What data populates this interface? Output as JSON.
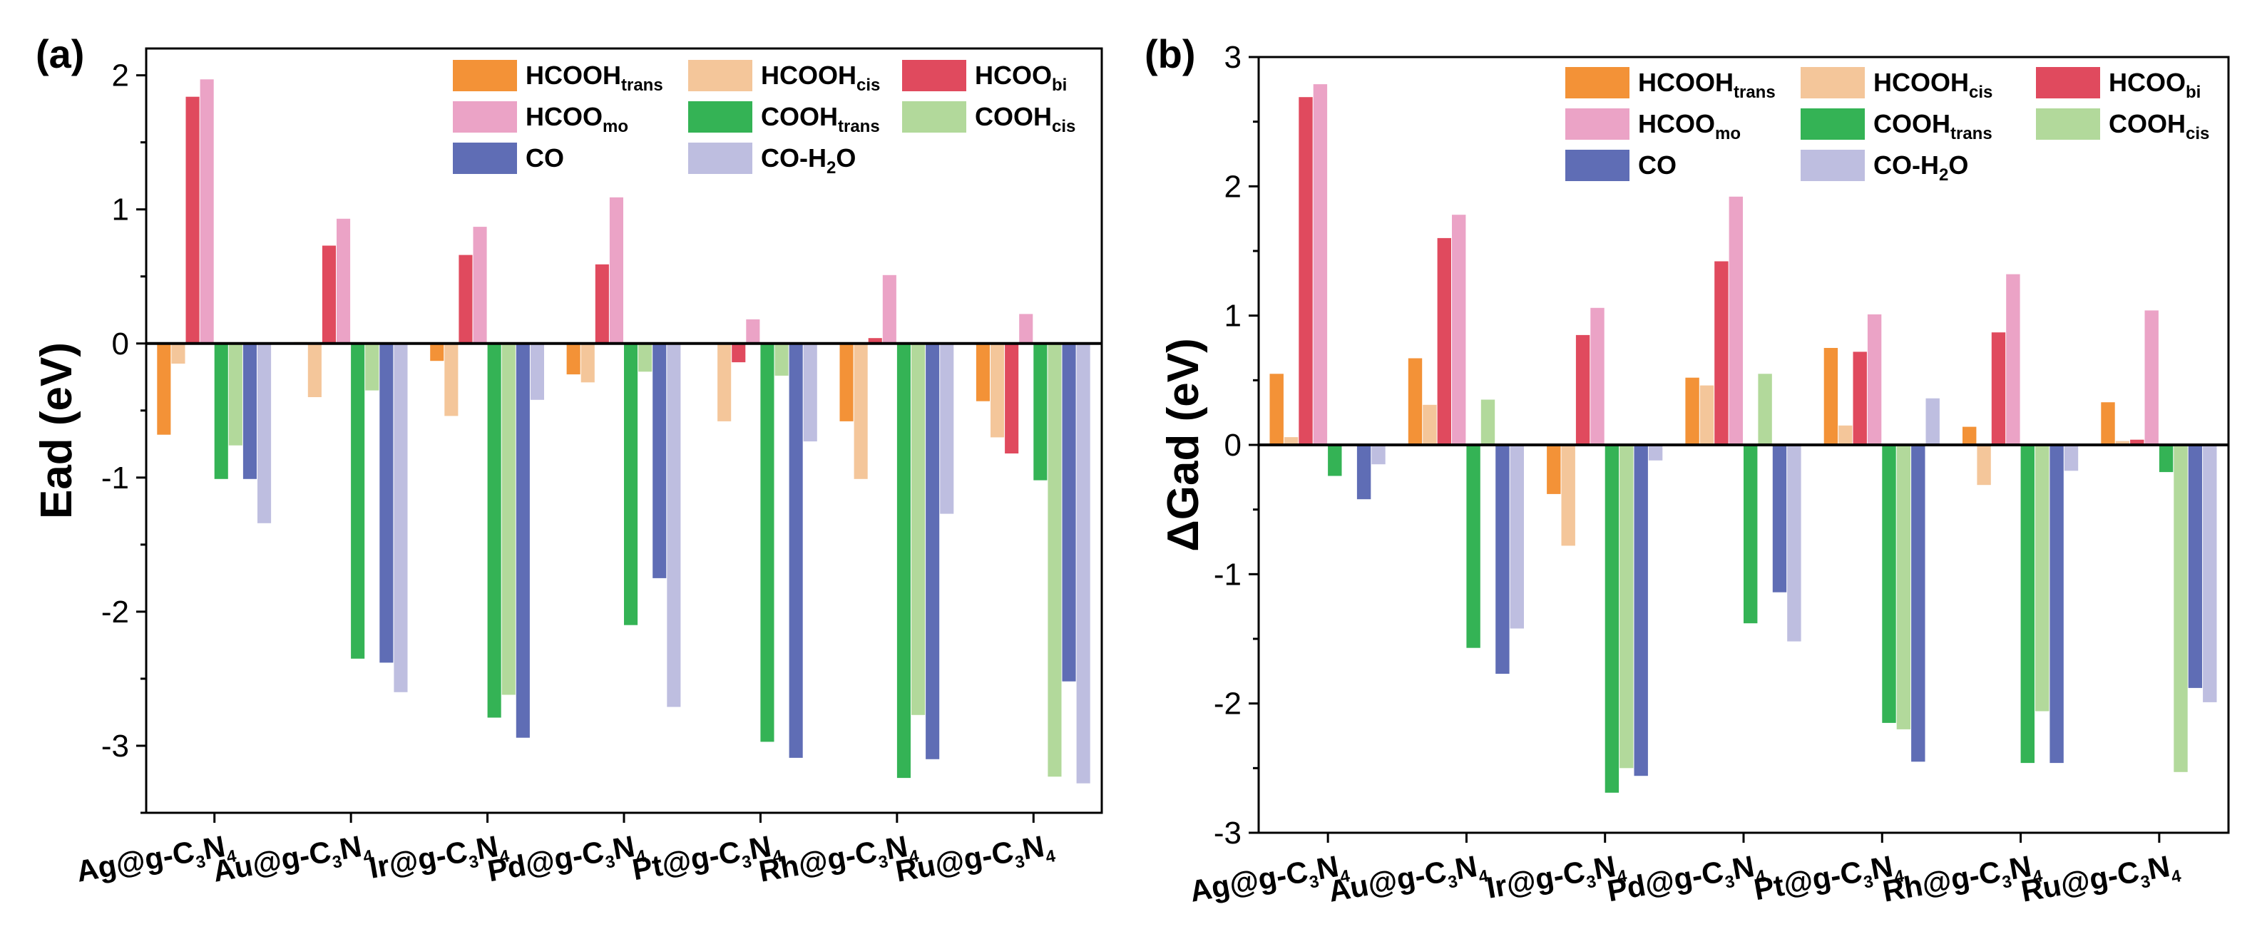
{
  "series_styles": [
    {
      "name_main": "HCOOH",
      "name_sub": "trans",
      "color": "#F39237"
    },
    {
      "name_main": "HCOOH",
      "name_sub": "cis",
      "color": "#F4C69A"
    },
    {
      "name_main": "HCOO",
      "name_sub": "bi",
      "color": "#E04A5E"
    },
    {
      "name_main": "HCOO",
      "name_sub": "mo",
      "color": "#EBA3C6"
    },
    {
      "name_main": "COOH",
      "name_sub": "trans",
      "color": "#34B355"
    },
    {
      "name_main": "COOH",
      "name_sub": "cis",
      "color": "#B2D99B"
    },
    {
      "name_main": "CO",
      "name_sub": "",
      "color": "#5F6DB5"
    },
    {
      "name_main": "CO-H",
      "name_sub": "2",
      "name_tail": "O",
      "color": "#BEBEE0"
    }
  ],
  "categories": [
    {
      "a": "Ag@g-C",
      "b": "3",
      "c": "N",
      "d": "4"
    },
    {
      "a": "Au@g-C",
      "b": "3",
      "c": "N",
      "d": "4"
    },
    {
      "a": "Ir@g-C",
      "b": "3",
      "c": "N",
      "d": "4"
    },
    {
      "a": "Pd@g-C",
      "b": "3",
      "c": "N",
      "d": "4"
    },
    {
      "a": "Pt@g-C",
      "b": "3",
      "c": "N",
      "d": "4"
    },
    {
      "a": "Rh@g-C",
      "b": "3",
      "c": "N",
      "d": "4"
    },
    {
      "a": "Ru@g-C",
      "b": "3",
      "c": "N",
      "d": "4"
    }
  ],
  "chart_data": [
    {
      "type": "bar",
      "panel_label": "(a)",
      "ylabel": "Ead (eV)",
      "xlabel": "",
      "ylim": [
        -3.5,
        2.2
      ],
      "yticks": [
        -3,
        -2,
        -1,
        0,
        1,
        2
      ],
      "ytick_labels": [
        "-3",
        "-2",
        "-1",
        "0",
        "1",
        "2"
      ],
      "legend_placement": "top-right",
      "categories": [
        "Ag@g-C3N4",
        "Au@g-C3N4",
        "Ir@g-C3N4",
        "Pd@g-C3N4",
        "Pt@g-C3N4",
        "Rh@g-C3N4",
        "Ru@g-C3N4"
      ],
      "series": [
        {
          "name": "HCOOHtrans",
          "values": [
            -0.68,
            0.01,
            -0.13,
            -0.23,
            0.0,
            -0.58,
            -0.43
          ]
        },
        {
          "name": "HCOOHcis",
          "values": [
            -0.15,
            -0.4,
            -0.54,
            -0.29,
            -0.58,
            -1.01,
            -0.7
          ]
        },
        {
          "name": "HCOObi",
          "values": [
            1.84,
            0.73,
            0.66,
            0.59,
            -0.14,
            0.04,
            -0.82
          ]
        },
        {
          "name": "HCOOmo",
          "values": [
            1.97,
            0.93,
            0.87,
            1.09,
            0.18,
            0.51,
            0.22
          ]
        },
        {
          "name": "COOHtrans",
          "values": [
            -1.01,
            -2.35,
            -2.79,
            -2.1,
            -2.97,
            -3.24,
            -1.02
          ]
        },
        {
          "name": "COOHcis",
          "values": [
            -0.76,
            -0.35,
            -2.62,
            -0.21,
            -0.24,
            -2.77,
            -3.23
          ]
        },
        {
          "name": "CO",
          "values": [
            -1.01,
            -2.38,
            -2.94,
            -1.75,
            -3.09,
            -3.1,
            -2.52
          ]
        },
        {
          "name": "CO-H2O",
          "values": [
            -1.34,
            -2.6,
            -0.42,
            -2.71,
            -0.73,
            -1.27,
            -3.28
          ]
        }
      ]
    },
    {
      "type": "bar",
      "panel_label": "(b)",
      "ylabel": "ΔGad (eV)",
      "xlabel": "",
      "ylim": [
        -3.0,
        3.0
      ],
      "yticks": [
        -3,
        -2,
        -1,
        0,
        1,
        2,
        3
      ],
      "ytick_labels": [
        "-3",
        "-2",
        "-1",
        "0",
        "1",
        "2",
        "3"
      ],
      "legend_placement": "top-right",
      "categories": [
        "Ag@g-C3N4",
        "Au@g-C3N4",
        "Ir@g-C3N4",
        "Pd@g-C3N4",
        "Pt@g-C3N4",
        "Rh@g-C3N4",
        "Ru@g-C3N4"
      ],
      "series": [
        {
          "name": "HCOOHtrans",
          "values": [
            0.55,
            0.67,
            -0.38,
            0.52,
            0.75,
            0.14,
            0.33
          ]
        },
        {
          "name": "HCOOHcis",
          "values": [
            0.06,
            0.31,
            -0.78,
            0.46,
            0.15,
            -0.31,
            0.03
          ]
        },
        {
          "name": "HCOObi",
          "values": [
            2.69,
            1.6,
            0.85,
            1.42,
            0.72,
            0.87,
            0.04
          ]
        },
        {
          "name": "HCOOmo",
          "values": [
            2.79,
            1.78,
            1.06,
            1.92,
            1.01,
            1.32,
            1.04
          ]
        },
        {
          "name": "COOHtrans",
          "values": [
            -0.24,
            -1.57,
            -2.69,
            -1.38,
            -2.15,
            -2.46,
            -0.21
          ]
        },
        {
          "name": "COOHcis",
          "values": [
            0.0,
            0.35,
            -2.5,
            0.55,
            -2.2,
            -2.06,
            -2.53
          ]
        },
        {
          "name": "CO",
          "values": [
            -0.42,
            -1.77,
            -2.56,
            -1.14,
            -2.45,
            -2.46,
            -1.88
          ]
        },
        {
          "name": "CO-H2O",
          "values": [
            -0.15,
            -1.42,
            -0.12,
            -1.52,
            0.36,
            -0.2,
            -1.99
          ]
        }
      ]
    }
  ]
}
